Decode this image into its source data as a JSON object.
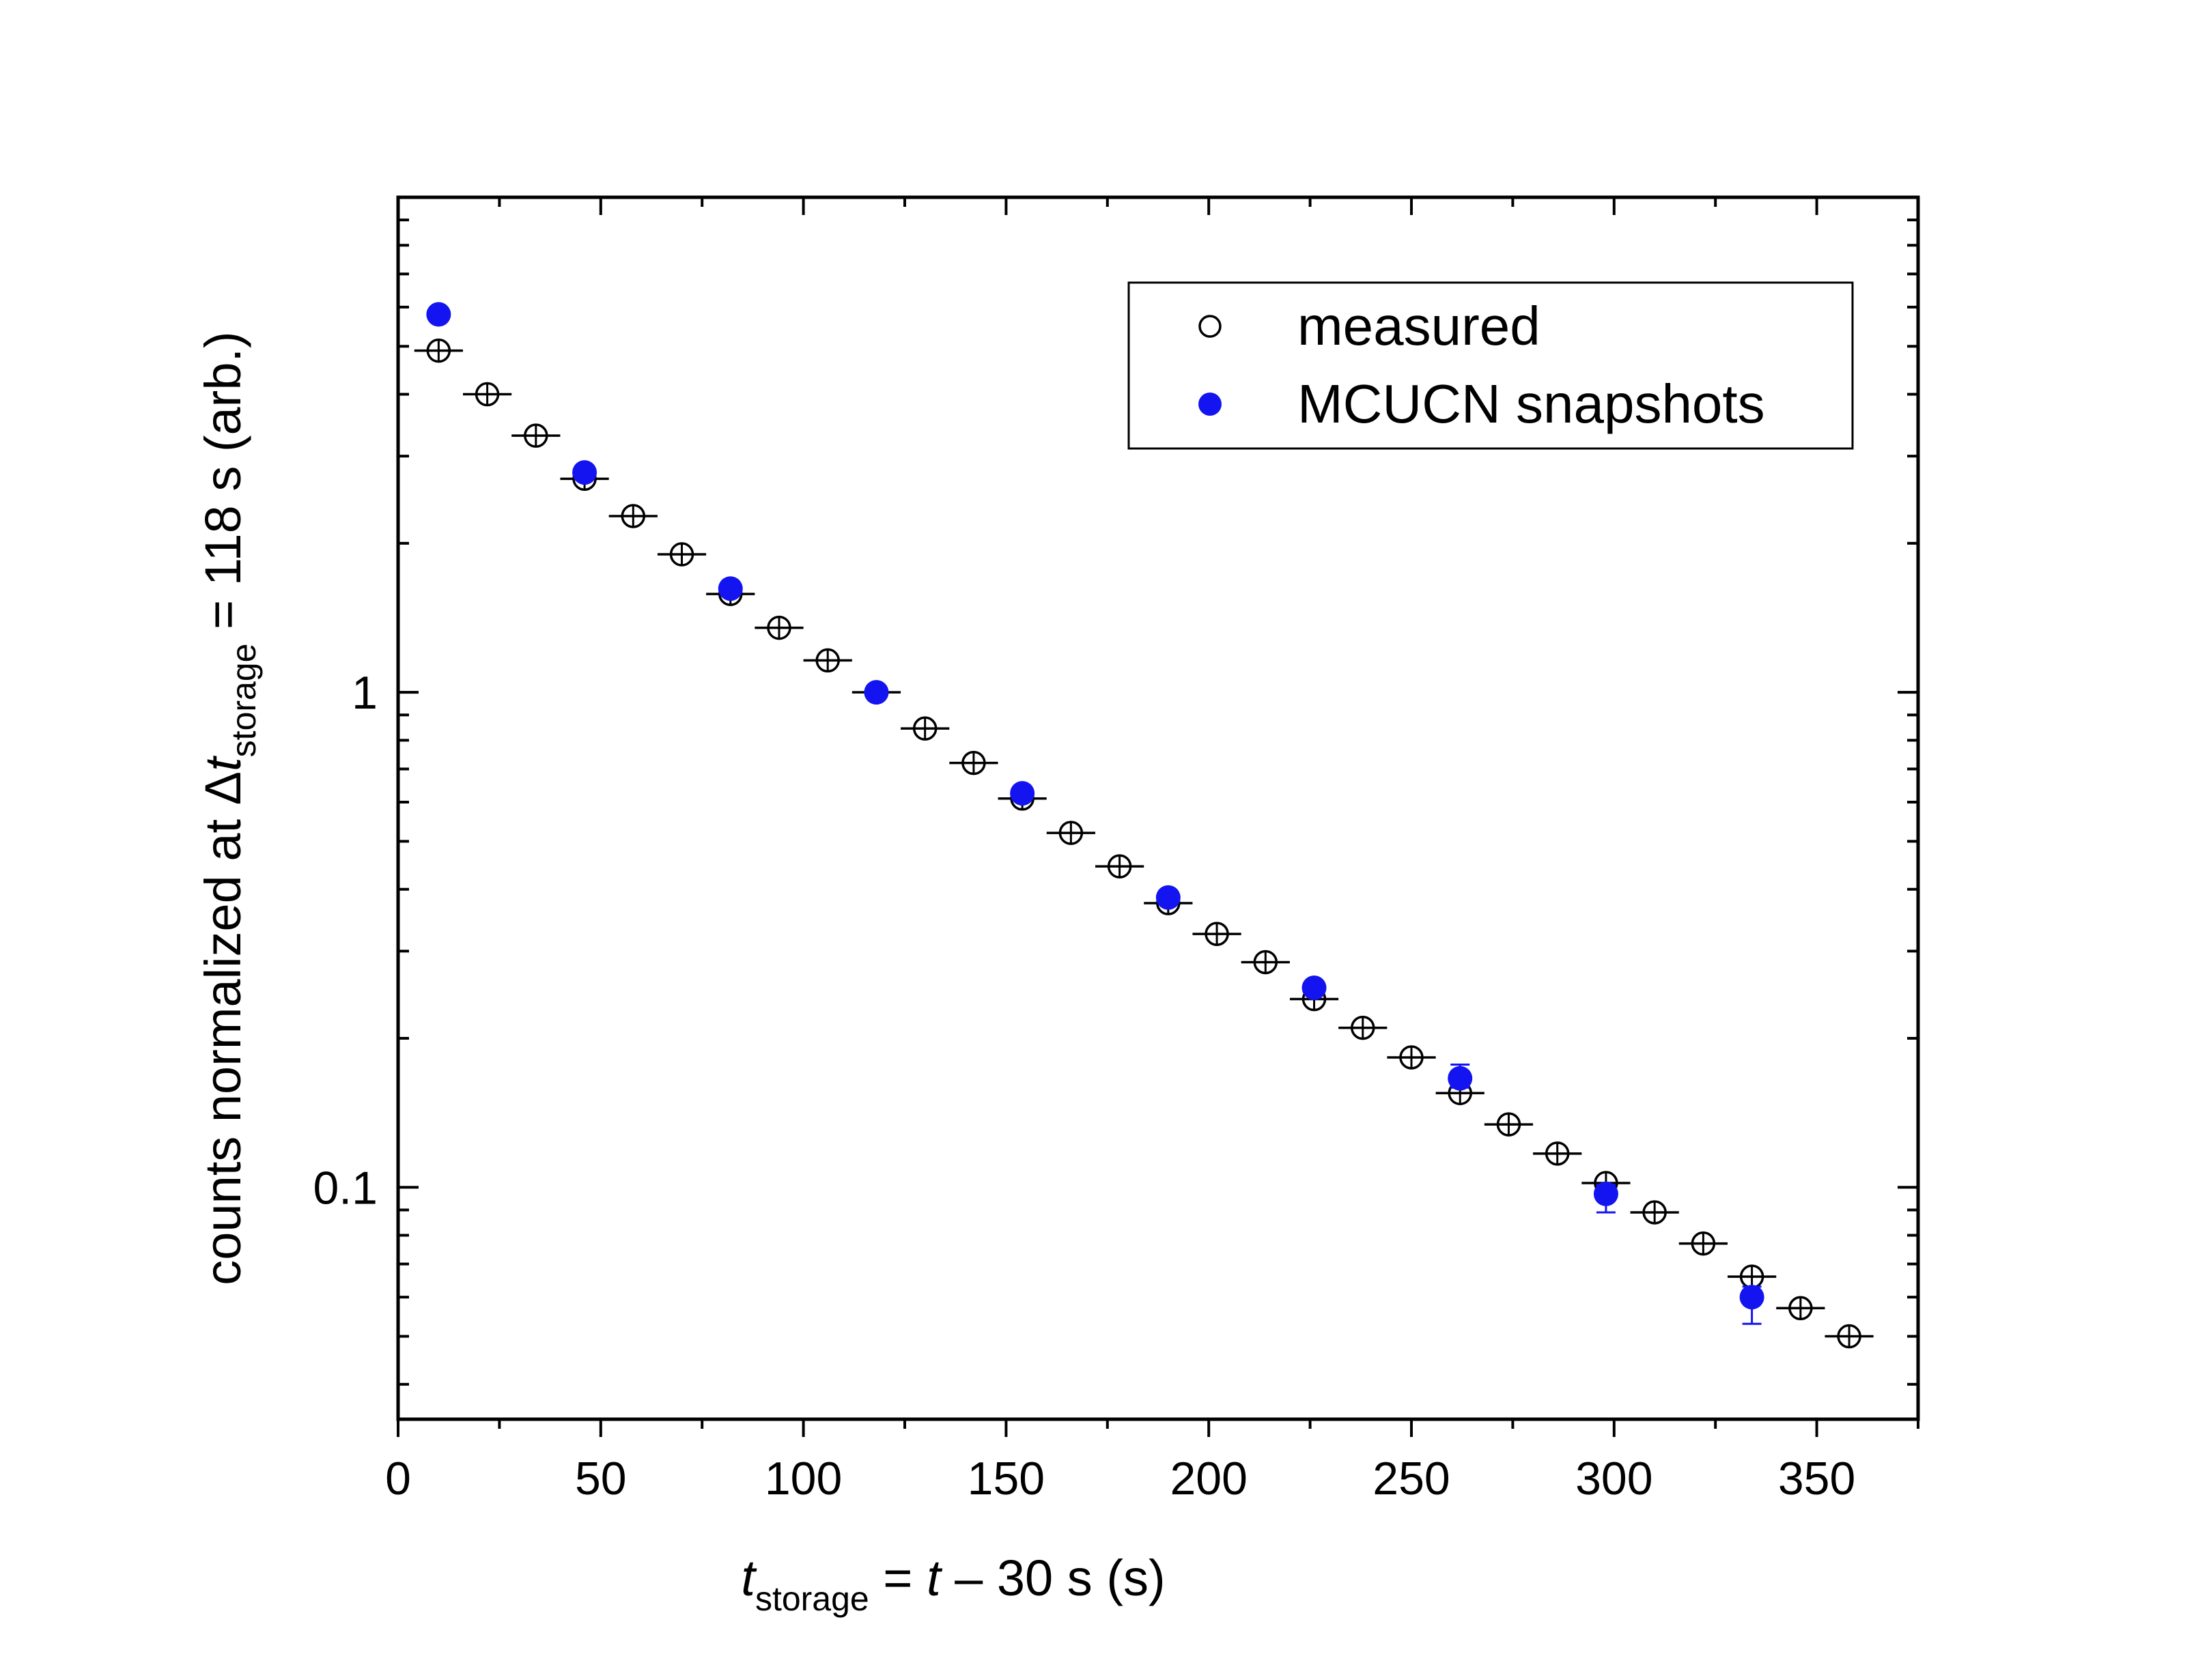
{
  "chart_data": {
    "type": "scatter",
    "x_scale": "linear",
    "y_scale": "log",
    "xlim": [
      0,
      375
    ],
    "ylim": [
      0.034,
      10
    ],
    "x_ticks": [
      0,
      50,
      100,
      150,
      200,
      250,
      300,
      350
    ],
    "x_tick_labels": [
      "0",
      "50",
      "100",
      "150",
      "200",
      "250",
      "300",
      "350"
    ],
    "y_ticks": [
      0.1,
      1
    ],
    "y_tick_labels": [
      "0.1",
      "1"
    ],
    "xlabel": {
      "t": "t",
      "sub": "storage",
      "rest": " = ",
      "t2": "t",
      "rest2": " – 30 s  (s)"
    },
    "ylabel": {
      "main": "counts normalized at Δ",
      "t": "t",
      "sub": "storage",
      "rest": " = 118 s  (arb.)"
    },
    "legend": {
      "position": "top-right",
      "entries": [
        "measured",
        "MCUCN snapshots"
      ]
    },
    "series": [
      {
        "name": "measured",
        "marker": "open-circle-cross",
        "color": "#000000",
        "x_halfwidth": 6,
        "x": [
          10,
          22,
          34,
          46,
          58,
          70,
          82,
          94,
          106,
          118,
          130,
          142,
          154,
          166,
          178,
          190,
          202,
          214,
          226,
          238,
          250,
          262,
          274,
          286,
          298,
          310,
          322,
          334,
          346,
          358
        ],
        "y": [
          4.9,
          4.0,
          3.3,
          2.7,
          2.27,
          1.9,
          1.58,
          1.35,
          1.16,
          1.0,
          0.845,
          0.72,
          0.61,
          0.52,
          0.445,
          0.375,
          0.325,
          0.285,
          0.24,
          0.21,
          0.183,
          0.155,
          0.134,
          0.117,
          0.102,
          0.089,
          0.077,
          0.066,
          0.057,
          0.05
        ]
      },
      {
        "name": "MCUCN snapshots",
        "marker": "filled-circle",
        "color": "#1414f0",
        "x": [
          10,
          46,
          82,
          118,
          154,
          190,
          226,
          262,
          298,
          334
        ],
        "y": [
          5.8,
          2.78,
          1.62,
          1.0,
          0.625,
          0.385,
          0.253,
          0.166,
          0.097,
          0.06
        ],
        "err_low": [
          0,
          0,
          0,
          0,
          0.005,
          0.004,
          0.005,
          0.007,
          0.008,
          0.007
        ],
        "err_high": [
          0,
          0,
          0,
          0,
          0.005,
          0.004,
          0.005,
          0.011,
          0.004,
          0.003
        ]
      }
    ],
    "colors": {
      "axis": "#000000",
      "snapshot": "#1414f0",
      "measured": "#000000"
    }
  }
}
